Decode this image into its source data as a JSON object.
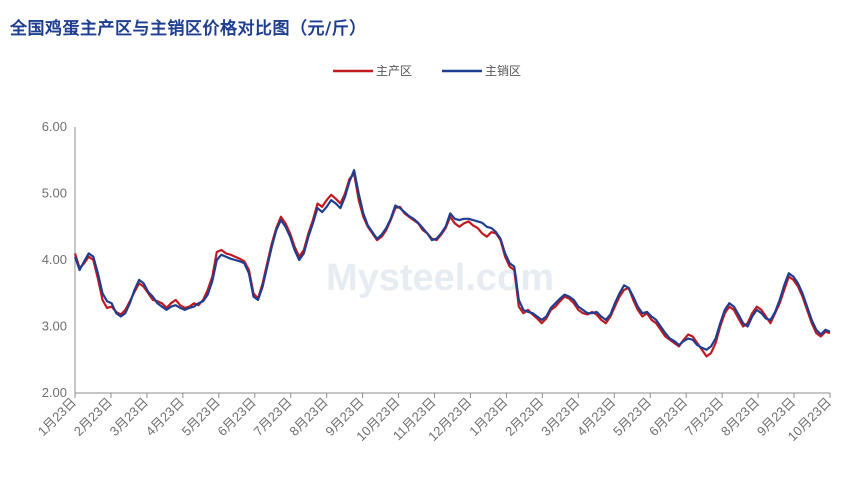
{
  "chart_data": {
    "type": "line",
    "title": "全国鸡蛋主产区与主销区价格对比图（元/斤）",
    "watermark": "Mysteel.com",
    "xlabel": "",
    "ylabel": "",
    "ylim": [
      2.0,
      6.0
    ],
    "yticks": [
      "2.00",
      "3.00",
      "4.00",
      "5.00",
      "6.00"
    ],
    "x_ticks": [
      "1月23日",
      "2月23日",
      "3月23日",
      "4月23日",
      "5月23日",
      "6月23日",
      "7月23日",
      "8月23日",
      "9月23日",
      "10月23日",
      "11月23日",
      "12月23日",
      "1月23日",
      "2月23日",
      "3月23日",
      "4月23日",
      "5月23日",
      "6月23日",
      "7月23日",
      "8月23日",
      "9月23日",
      "10月23日"
    ],
    "legend_position": "top-center",
    "grid": false,
    "series": [
      {
        "name": "主产区",
        "color": "#c0191f",
        "values": [
          4.1,
          3.88,
          3.95,
          4.05,
          4.0,
          3.72,
          3.4,
          3.28,
          3.3,
          3.22,
          3.18,
          3.25,
          3.38,
          3.52,
          3.65,
          3.6,
          3.5,
          3.4,
          3.38,
          3.35,
          3.28,
          3.35,
          3.4,
          3.32,
          3.28,
          3.3,
          3.35,
          3.32,
          3.4,
          3.55,
          3.75,
          4.12,
          4.15,
          4.1,
          4.08,
          4.05,
          4.02,
          3.98,
          3.85,
          3.5,
          3.42,
          3.65,
          3.95,
          4.25,
          4.48,
          4.65,
          4.55,
          4.4,
          4.2,
          4.05,
          4.15,
          4.4,
          4.6,
          4.85,
          4.8,
          4.9,
          4.98,
          4.92,
          4.85,
          5.0,
          5.22,
          5.3,
          4.9,
          4.65,
          4.5,
          4.4,
          4.3,
          4.35,
          4.45,
          4.6,
          4.78,
          4.8,
          4.7,
          4.65,
          4.6,
          4.55,
          4.45,
          4.4,
          4.32,
          4.3,
          4.38,
          4.48,
          4.65,
          4.55,
          4.5,
          4.55,
          4.58,
          4.52,
          4.48,
          4.4,
          4.35,
          4.42,
          4.4,
          4.3,
          4.05,
          3.9,
          3.85,
          3.3,
          3.2,
          3.25,
          3.18,
          3.12,
          3.05,
          3.12,
          3.25,
          3.3,
          3.38,
          3.45,
          3.42,
          3.35,
          3.25,
          3.2,
          3.18,
          3.22,
          3.18,
          3.1,
          3.05,
          3.15,
          3.3,
          3.45,
          3.55,
          3.58,
          3.4,
          3.25,
          3.15,
          3.2,
          3.1,
          3.05,
          2.95,
          2.85,
          2.8,
          2.75,
          2.7,
          2.8,
          2.88,
          2.85,
          2.75,
          2.65,
          2.55,
          2.6,
          2.75,
          3.0,
          3.2,
          3.3,
          3.25,
          3.12,
          3.0,
          3.05,
          3.2,
          3.3,
          3.25,
          3.15,
          3.05,
          3.2,
          3.35,
          3.55,
          3.75,
          3.7,
          3.6,
          3.45,
          3.25,
          3.05,
          2.9,
          2.85,
          2.92,
          2.9
        ]
      },
      {
        "name": "主销区",
        "color": "#1f3e8f",
        "values": [
          4.05,
          3.85,
          3.98,
          4.1,
          4.05,
          3.8,
          3.5,
          3.38,
          3.35,
          3.2,
          3.15,
          3.2,
          3.35,
          3.55,
          3.7,
          3.65,
          3.52,
          3.45,
          3.35,
          3.3,
          3.25,
          3.3,
          3.32,
          3.28,
          3.25,
          3.28,
          3.3,
          3.35,
          3.38,
          3.48,
          3.68,
          4.0,
          4.08,
          4.05,
          4.02,
          4.0,
          3.98,
          3.95,
          3.8,
          3.45,
          3.4,
          3.6,
          3.9,
          4.2,
          4.45,
          4.6,
          4.5,
          4.35,
          4.15,
          4.0,
          4.1,
          4.35,
          4.55,
          4.78,
          4.72,
          4.8,
          4.9,
          4.85,
          4.78,
          4.95,
          5.18,
          5.35,
          5.0,
          4.7,
          4.52,
          4.42,
          4.32,
          4.38,
          4.48,
          4.62,
          4.82,
          4.78,
          4.72,
          4.66,
          4.62,
          4.56,
          4.48,
          4.4,
          4.3,
          4.32,
          4.4,
          4.5,
          4.7,
          4.62,
          4.6,
          4.62,
          4.62,
          4.6,
          4.58,
          4.56,
          4.5,
          4.48,
          4.42,
          4.32,
          4.1,
          3.95,
          3.9,
          3.4,
          3.25,
          3.22,
          3.2,
          3.15,
          3.1,
          3.15,
          3.28,
          3.35,
          3.42,
          3.48,
          3.45,
          3.4,
          3.3,
          3.25,
          3.2,
          3.2,
          3.22,
          3.15,
          3.1,
          3.18,
          3.35,
          3.5,
          3.62,
          3.58,
          3.45,
          3.3,
          3.2,
          3.22,
          3.15,
          3.1,
          3.0,
          2.9,
          2.82,
          2.78,
          2.72,
          2.78,
          2.82,
          2.8,
          2.72,
          2.68,
          2.65,
          2.7,
          2.82,
          3.05,
          3.25,
          3.35,
          3.3,
          3.18,
          3.05,
          3.0,
          3.15,
          3.25,
          3.2,
          3.12,
          3.1,
          3.22,
          3.4,
          3.62,
          3.8,
          3.75,
          3.65,
          3.5,
          3.3,
          3.1,
          2.95,
          2.88,
          2.95,
          2.92
        ]
      }
    ]
  }
}
